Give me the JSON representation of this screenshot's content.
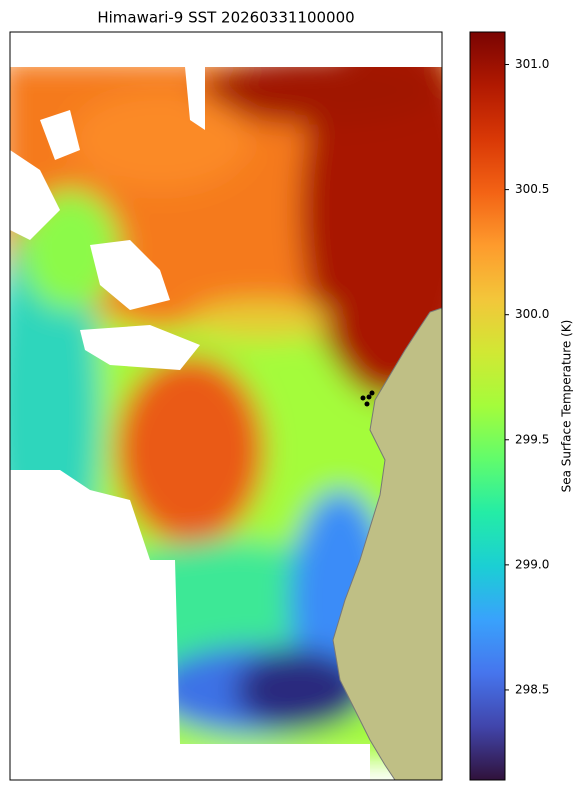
{
  "chart_data": {
    "type": "heatmap",
    "title": "Himawari-9 SST 20260331100000",
    "colorbar_label": "Sea Surface Temperature (K)",
    "colormap": "turbo",
    "clim": [
      298.14,
      301.13
    ],
    "cticks": [
      298.5,
      {
        "value": 299,
        "label": "299.0"
      },
      299.5,
      {
        "value": 300,
        "label": "300.0"
      },
      300.5,
      {
        "value": 301,
        "label": "301.0"
      }
    ]
  }
}
